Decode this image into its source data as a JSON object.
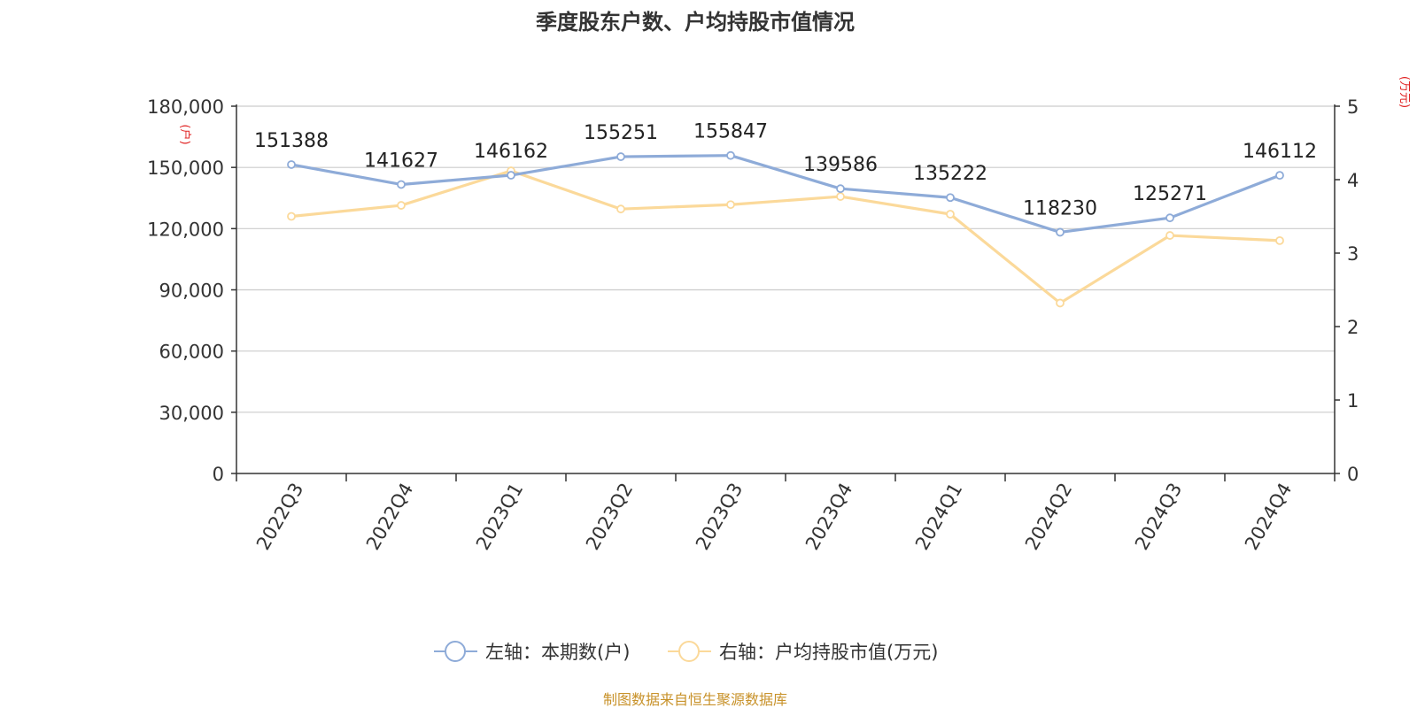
{
  "chart_data": {
    "type": "line",
    "title": "季度股东户数、户均持股市值情况",
    "left_axis_unit": "(户)",
    "right_axis_unit": "(万元)",
    "categories": [
      "2022Q3",
      "2022Q4",
      "2023Q1",
      "2023Q2",
      "2023Q3",
      "2023Q4",
      "2024Q1",
      "2024Q2",
      "2024Q3",
      "2024Q4"
    ],
    "left_axis": {
      "min": 0,
      "max": 180000,
      "ticks": [
        "0",
        "30,000",
        "60,000",
        "90,000",
        "120,000",
        "150,000",
        "180,000"
      ],
      "tick_values": [
        0,
        30000,
        60000,
        90000,
        120000,
        150000,
        180000
      ]
    },
    "right_axis": {
      "min": 0,
      "max": 5,
      "ticks": [
        "0",
        "1",
        "2",
        "3",
        "4",
        "5"
      ],
      "tick_values": [
        0,
        1,
        2,
        3,
        4,
        5
      ]
    },
    "grid": true,
    "legend_position": "bottom",
    "series": [
      {
        "name": "左轴：本期数(户)",
        "axis": "left",
        "color": "#8eabd8",
        "values": [
          151388,
          141627,
          146162,
          155251,
          155847,
          139586,
          135222,
          118230,
          125271,
          146112
        ],
        "labels": [
          "151388",
          "141627",
          "146162",
          "155251",
          "155847",
          "139586",
          "135222",
          "118230",
          "125271",
          "146112"
        ]
      },
      {
        "name": "右轴：户均持股市值(万元)",
        "axis": "right",
        "color": "#fbd99a",
        "values": [
          3.5,
          3.65,
          4.12,
          3.6,
          3.66,
          3.77,
          3.53,
          2.32,
          3.24,
          3.17
        ]
      }
    ],
    "source": "制图数据来自恒生聚源数据库"
  }
}
